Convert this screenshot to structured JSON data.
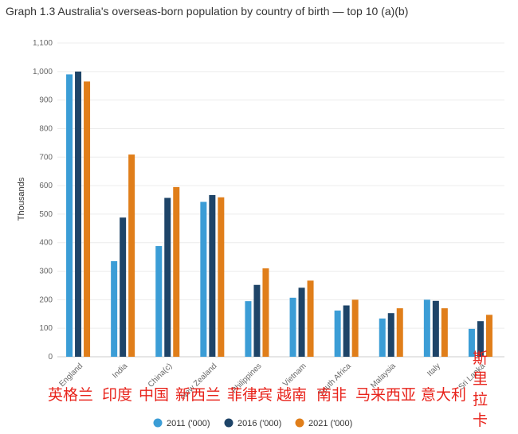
{
  "title": "Graph 1.3 Australia's overseas-born population by country of birth — top 10 (a)(b)",
  "chart_data": {
    "type": "bar",
    "title": "Graph 1.3 Australia's overseas-born population by country of birth — top 10 (a)(b)",
    "xlabel": "",
    "ylabel": "Thousands",
    "ylim": [
      0,
      1100
    ],
    "yticks": [
      "0",
      "100",
      "200",
      "300",
      "400",
      "500",
      "600",
      "700",
      "800",
      "900",
      "1,000",
      "1,100"
    ],
    "categories": [
      "England",
      "India",
      "China(c)",
      "New Zealand",
      "Philippines",
      "Vietnam",
      "South Africa",
      "Malaysia",
      "Italy",
      "Sri Lanka"
    ],
    "series": [
      {
        "name": "2011 ('000)",
        "color": "#3b9dd6",
        "values": [
          990,
          335,
          388,
          543,
          195,
          207,
          162,
          134,
          200,
          98
        ]
      },
      {
        "name": "2016 ('000)",
        "color": "#1e4468",
        "values": [
          1000,
          488,
          557,
          567,
          252,
          242,
          180,
          153,
          196,
          125
        ]
      },
      {
        "name": "2021 ('000)",
        "color": "#e07e1a",
        "values": [
          965,
          709,
          595,
          559,
          310,
          267,
          200,
          170,
          170,
          147
        ]
      }
    ],
    "grid": true,
    "legend": "bottom-center",
    "annotations": [
      "英格兰",
      "印度",
      "中国",
      "新西兰",
      "菲律宾",
      "越南",
      "南非",
      "马来西亚",
      "意大利",
      "斯里拉卡"
    ]
  }
}
